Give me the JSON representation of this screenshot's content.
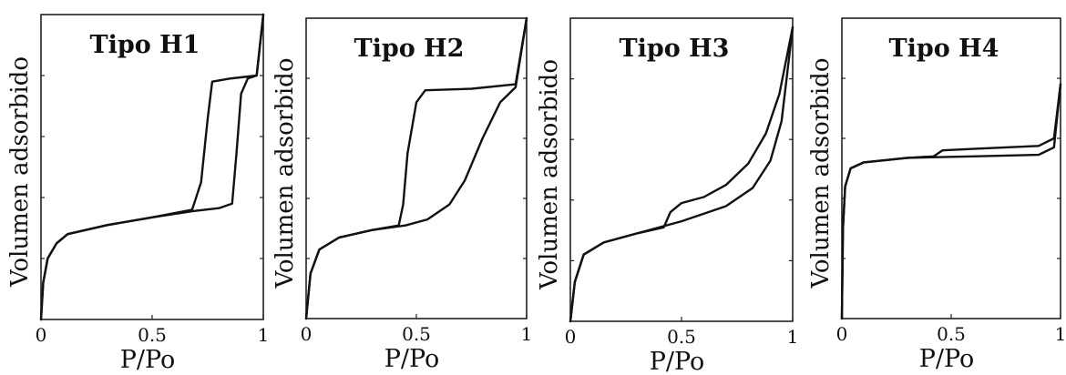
{
  "chart_data": [
    {
      "type": "line",
      "title": "Tipo H1",
      "xlabel": "P/Po",
      "ylabel": "Volumen adsorbido",
      "xlim": [
        0,
        1
      ],
      "ylim": [
        0,
        1
      ],
      "xticks": [
        {
          "value": 0,
          "label": "0"
        },
        {
          "value": 0.5,
          "label": "0.5"
        },
        {
          "value": 1,
          "label": "1"
        }
      ],
      "yticks": [
        0.2,
        0.4,
        0.6,
        0.8
      ],
      "grid": false,
      "series": [
        {
          "values": [
            [
              0,
              0
            ],
            [
              0.01,
              0.12
            ],
            [
              0.03,
              0.2
            ],
            [
              0.07,
              0.25
            ],
            [
              0.12,
              0.28
            ],
            [
              0.3,
              0.31
            ],
            [
              0.5,
              0.335
            ],
            [
              0.68,
              0.36
            ],
            [
              0.72,
              0.45
            ],
            [
              0.75,
              0.66
            ],
            [
              0.77,
              0.78
            ],
            [
              0.85,
              0.79
            ],
            [
              0.97,
              0.8
            ],
            [
              1,
              1.0
            ]
          ]
        },
        {
          "values": [
            [
              0,
              0
            ],
            [
              0.01,
              0.12
            ],
            [
              0.03,
              0.2
            ],
            [
              0.07,
              0.25
            ],
            [
              0.12,
              0.28
            ],
            [
              0.3,
              0.31
            ],
            [
              0.5,
              0.335
            ],
            [
              0.68,
              0.355
            ],
            [
              0.8,
              0.365
            ],
            [
              0.86,
              0.38
            ],
            [
              0.88,
              0.55
            ],
            [
              0.9,
              0.74
            ],
            [
              0.93,
              0.79
            ],
            [
              0.97,
              0.8
            ],
            [
              1,
              1.0
            ]
          ]
        }
      ]
    },
    {
      "type": "line",
      "title": "Tipo H2",
      "xlabel": "P/Po",
      "ylabel": "Volumen adsorbido",
      "xlim": [
        0,
        1
      ],
      "ylim": [
        0,
        1
      ],
      "xticks": [
        {
          "value": 0,
          "label": "0"
        },
        {
          "value": 0.5,
          "label": "0.5"
        },
        {
          "value": 1,
          "label": "1"
        }
      ],
      "yticks": [
        0.2,
        0.4,
        0.6,
        0.8
      ],
      "grid": false,
      "series": [
        {
          "values": [
            [
              0,
              0
            ],
            [
              0.02,
              0.15
            ],
            [
              0.06,
              0.23
            ],
            [
              0.15,
              0.27
            ],
            [
              0.3,
              0.295
            ],
            [
              0.42,
              0.31
            ],
            [
              0.44,
              0.38
            ],
            [
              0.46,
              0.55
            ],
            [
              0.5,
              0.72
            ],
            [
              0.54,
              0.76
            ],
            [
              0.75,
              0.765
            ],
            [
              0.95,
              0.78
            ],
            [
              1,
              1.0
            ]
          ]
        },
        {
          "values": [
            [
              0,
              0
            ],
            [
              0.02,
              0.15
            ],
            [
              0.06,
              0.23
            ],
            [
              0.15,
              0.27
            ],
            [
              0.3,
              0.295
            ],
            [
              0.45,
              0.31
            ],
            [
              0.55,
              0.33
            ],
            [
              0.65,
              0.38
            ],
            [
              0.72,
              0.46
            ],
            [
              0.8,
              0.6
            ],
            [
              0.88,
              0.72
            ],
            [
              0.95,
              0.77
            ],
            [
              1,
              1.0
            ]
          ]
        }
      ]
    },
    {
      "type": "line",
      "title": "Tipo H3",
      "xlabel": "P/Po",
      "ylabel": "Volumen adsorbido",
      "xlim": [
        0,
        1
      ],
      "ylim": [
        0,
        1
      ],
      "xticks": [
        {
          "value": 0,
          "label": "0"
        },
        {
          "value": 0.5,
          "label": "0.5"
        },
        {
          "value": 1,
          "label": "1"
        }
      ],
      "yticks": [
        0.2,
        0.4,
        0.6,
        0.8
      ],
      "grid": false,
      "series": [
        {
          "values": [
            [
              0,
              0
            ],
            [
              0.02,
              0.13
            ],
            [
              0.06,
              0.22
            ],
            [
              0.15,
              0.26
            ],
            [
              0.3,
              0.29
            ],
            [
              0.42,
              0.31
            ],
            [
              0.45,
              0.36
            ],
            [
              0.5,
              0.39
            ],
            [
              0.6,
              0.41
            ],
            [
              0.7,
              0.45
            ],
            [
              0.8,
              0.52
            ],
            [
              0.88,
              0.62
            ],
            [
              0.94,
              0.75
            ],
            [
              1,
              0.97
            ]
          ]
        },
        {
          "values": [
            [
              0,
              0
            ],
            [
              0.02,
              0.13
            ],
            [
              0.06,
              0.22
            ],
            [
              0.15,
              0.26
            ],
            [
              0.3,
              0.29
            ],
            [
              0.5,
              0.33
            ],
            [
              0.7,
              0.38
            ],
            [
              0.82,
              0.44
            ],
            [
              0.9,
              0.53
            ],
            [
              0.95,
              0.66
            ],
            [
              1,
              0.97
            ]
          ]
        }
      ]
    },
    {
      "type": "line",
      "title": "Tipo H4",
      "xlabel": "P/Po",
      "ylabel": "Volumen adsorbido",
      "xlim": [
        0,
        1
      ],
      "ylim": [
        0,
        1
      ],
      "xticks": [
        {
          "value": 0,
          "label": "0"
        },
        {
          "value": 0.5,
          "label": "0.5"
        },
        {
          "value": 1,
          "label": "1"
        }
      ],
      "yticks": [
        0.2,
        0.4,
        0.6,
        0.8
      ],
      "grid": false,
      "series": [
        {
          "values": [
            [
              0,
              0
            ],
            [
              0.005,
              0.3
            ],
            [
              0.015,
              0.44
            ],
            [
              0.04,
              0.5
            ],
            [
              0.1,
              0.52
            ],
            [
              0.3,
              0.535
            ],
            [
              0.42,
              0.54
            ],
            [
              0.46,
              0.56
            ],
            [
              0.6,
              0.565
            ],
            [
              0.9,
              0.575
            ],
            [
              0.97,
              0.6
            ],
            [
              1,
              0.78
            ]
          ]
        },
        {
          "values": [
            [
              0,
              0
            ],
            [
              0.005,
              0.3
            ],
            [
              0.015,
              0.44
            ],
            [
              0.04,
              0.5
            ],
            [
              0.1,
              0.52
            ],
            [
              0.3,
              0.535
            ],
            [
              0.6,
              0.54
            ],
            [
              0.9,
              0.545
            ],
            [
              0.97,
              0.57
            ],
            [
              1,
              0.78
            ]
          ]
        }
      ]
    }
  ]
}
